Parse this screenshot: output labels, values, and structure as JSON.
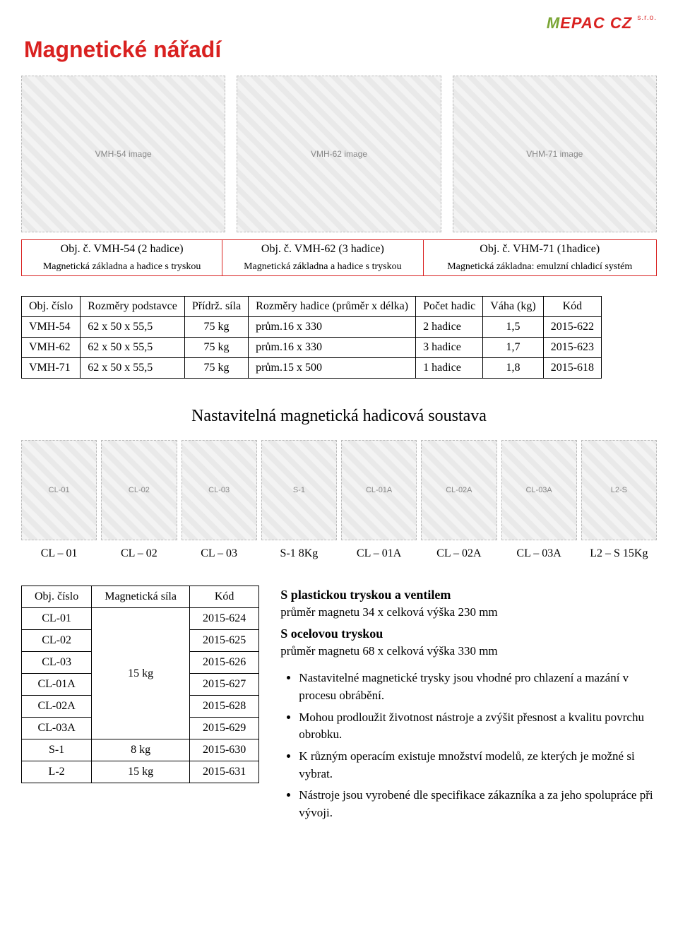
{
  "logo": {
    "m": "M",
    "rest": "EPAC CZ",
    "sub": "s.r.o."
  },
  "page_title": "Magnetické nářadí",
  "top_image_placeholders": [
    "VMH-54 image",
    "VMH-62 image",
    "VHM-71 image"
  ],
  "top_table": {
    "row1": [
      "Obj. č. VMH-54 (2 hadice)",
      "Obj. č. VMH-62 (3 hadice)",
      "Obj. č. VHM-71 (1hadice)"
    ],
    "row2": [
      "Magnetická základna a hadice s tryskou",
      "Magnetická základna a hadice s tryskou",
      "Magnetická základna: emulzní chladicí systém"
    ]
  },
  "spec_table": {
    "headers": [
      "Obj. číslo",
      "Rozměry podstavce",
      "Přídrž. síla",
      "Rozměry hadice (průměr x délka)",
      "Počet hadic",
      "Váha (kg)",
      "Kód"
    ],
    "rows": [
      [
        "VMH-54",
        "62 x 50 x 55,5",
        "75 kg",
        "prům.16 x 330",
        "2 hadice",
        "1,5",
        "2015-622"
      ],
      [
        "VMH-62",
        "62 x 50 x 55,5",
        "75 kg",
        "prům.16 x 330",
        "3 hadice",
        "1,7",
        "2015-623"
      ],
      [
        "VMH-71",
        "62 x 50 x 55,5",
        "75 kg",
        "prům.15 x 500",
        "1 hadice",
        "1,8",
        "2015-618"
      ]
    ]
  },
  "section2_title": "Nastavitelná magnetická hadicová soustava",
  "gallery_placeholders": [
    "CL-01",
    "CL-02",
    "CL-03",
    "S-1",
    "CL-01A",
    "CL-02A",
    "CL-03A",
    "L2-S"
  ],
  "gallery_labels": [
    "CL – 01",
    "CL – 02",
    "CL – 03",
    "S-1   8Kg",
    "CL – 01A",
    "CL – 02A",
    "CL – 03A",
    "L2 – S  15Kg"
  ],
  "codes_table": {
    "headers": [
      "Obj. číslo",
      "Magnetická síla",
      "Kód"
    ],
    "rows": [
      [
        "CL-01",
        "",
        "2015-624"
      ],
      [
        "CL-02",
        "",
        "2015-625"
      ],
      [
        "CL-03",
        "",
        "2015-626"
      ],
      [
        "CL-01A",
        "",
        "2015-627"
      ],
      [
        "CL-02A",
        "",
        "2015-628"
      ],
      [
        "CL-03A",
        "",
        "2015-629"
      ],
      [
        "S-1",
        "8 kg",
        "2015-630"
      ],
      [
        "L-2",
        "15 kg",
        "2015-631"
      ]
    ],
    "merged_force_label": "15 kg",
    "merged_force_rowspan": 6
  },
  "desc": {
    "t1": "S plastickou tryskou a ventilem",
    "p1": "průměr  magnetu 34 x celková výška 230 mm",
    "t2": "S ocelovou tryskou",
    "p2": "průměr  magnetu 68 x  celková výška 330 mm",
    "bullets": [
      "Nastavitelné magnetické trysky jsou vhodné pro chlazení a mazání v procesu obrábění.",
      "Mohou prodloužit životnost nástroje a zvýšit přesnost a kvalitu povrchu obrobku.",
      "K různým operacím existuje množství modelů, ze kterých je možné si vybrat.",
      "Nástroje jsou vyrobené dle specifikace zákazníka a za jeho spolupráce při vývoji."
    ]
  }
}
